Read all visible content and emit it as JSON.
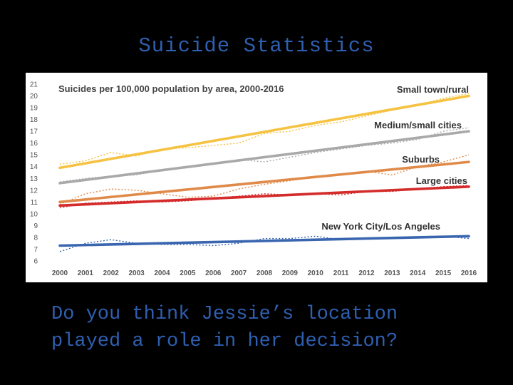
{
  "slide": {
    "title": "Suicide Statistics",
    "question_line1": "Do you think Jessie’s location",
    "question_line2": "played a role in her decision?"
  },
  "chart_data": {
    "type": "line",
    "title": "Suicides per 100,000 population by area, 2000-2016",
    "xlabel": "",
    "ylabel": "",
    "x": [
      2000,
      2001,
      2002,
      2003,
      2004,
      2005,
      2006,
      2007,
      2008,
      2009,
      2010,
      2011,
      2012,
      2013,
      2014,
      2015,
      2016
    ],
    "ylim": [
      6,
      21
    ],
    "yticks": [
      6,
      7,
      8,
      9,
      10,
      11,
      12,
      13,
      14,
      15,
      16,
      17,
      18,
      19,
      20,
      21
    ],
    "grid": false,
    "legend": "inline labels",
    "series": [
      {
        "name": "Small town/rural",
        "color": "#f5c242",
        "trend": [
          13.9,
          20.0
        ],
        "values": [
          14.2,
          14.5,
          15.2,
          14.9,
          15.5,
          15.6,
          15.8,
          16.0,
          16.8,
          17.0,
          17.5,
          17.8,
          18.3,
          18.8,
          19.2,
          19.8,
          20.2
        ]
      },
      {
        "name": "Medium/small cities",
        "color": "#a9a9a9",
        "trend": [
          12.6,
          17.0
        ],
        "values": [
          12.7,
          13.0,
          13.2,
          13.3,
          13.7,
          13.9,
          14.2,
          14.6,
          14.4,
          14.8,
          15.2,
          15.5,
          15.8,
          16.0,
          16.3,
          17.0,
          17.3
        ]
      },
      {
        "name": "Suburbs",
        "color": "#e08a4a",
        "trend": [
          11.0,
          14.4
        ],
        "values": [
          10.8,
          11.7,
          12.1,
          12.0,
          11.7,
          11.4,
          11.5,
          12.1,
          12.5,
          12.8,
          13.2,
          13.3,
          13.6,
          13.3,
          14.0,
          14.4,
          15.0
        ]
      },
      {
        "name": "Large cities",
        "color": "#d42b2b",
        "trend": [
          10.7,
          12.3
        ],
        "values": [
          10.5,
          10.9,
          11.0,
          11.1,
          11.0,
          11.1,
          11.3,
          11.5,
          11.7,
          11.6,
          11.7,
          11.6,
          11.9,
          11.9,
          12.1,
          12.3,
          12.4
        ]
      },
      {
        "name": "New York City/Los Angeles",
        "color": "#3a66b0",
        "trend": [
          7.3,
          8.1
        ],
        "values": [
          6.8,
          7.5,
          7.8,
          7.5,
          7.4,
          7.4,
          7.3,
          7.5,
          7.9,
          7.9,
          8.1,
          7.8,
          7.9,
          7.9,
          8.0,
          8.1,
          7.9
        ]
      }
    ]
  }
}
